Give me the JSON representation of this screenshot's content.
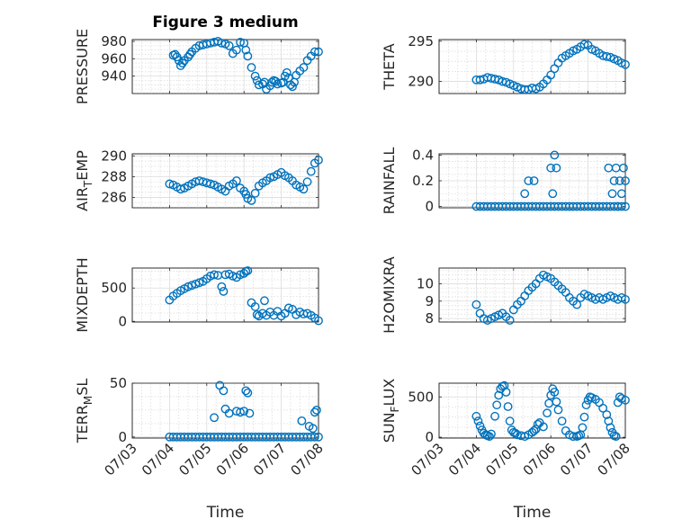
{
  "figure": {
    "title": "Figure 3 medium"
  },
  "colors": {
    "marker": "#0072bd",
    "axes": "#262626",
    "grid": "#dcdcdc"
  },
  "chart_data": [
    {
      "type": "scatter",
      "title": "Figure 3 medium",
      "ylabel": "PRESSURE",
      "xlim": [
        "07/03",
        "07/08"
      ],
      "ylim": [
        920,
        982
      ],
      "yticks": [
        940,
        960,
        980
      ],
      "xticks": [],
      "grid": true,
      "x": [
        1.1,
        1.15,
        1.2,
        1.25,
        1.3,
        1.35,
        1.4,
        1.5,
        1.55,
        1.6,
        1.7,
        1.8,
        1.9,
        2.0,
        2.1,
        2.2,
        2.3,
        2.4,
        2.5,
        2.6,
        2.7,
        2.8,
        2.9,
        3.0,
        3.05,
        3.1,
        3.2,
        3.3,
        3.35,
        3.4,
        3.5,
        3.55,
        3.6,
        3.7,
        3.75,
        3.8,
        3.85,
        3.9,
        4.0,
        4.05,
        4.1,
        4.15,
        4.2,
        4.25,
        4.3,
        4.35,
        4.4,
        4.5,
        4.6,
        4.7,
        4.8,
        4.9,
        5.0
      ],
      "y": [
        964,
        965,
        962,
        958,
        952,
        955,
        958,
        962,
        965,
        968,
        972,
        975,
        976,
        977,
        978,
        979,
        980,
        978,
        977,
        975,
        966,
        970,
        979,
        978,
        970,
        963,
        950,
        940,
        935,
        930,
        931,
        933,
        925,
        929,
        933,
        935,
        934,
        931,
        932,
        933,
        940,
        944,
        938,
        930,
        928,
        933,
        941,
        946,
        950,
        958,
        963,
        968,
        968
      ]
    },
    {
      "type": "scatter",
      "title": "",
      "ylabel": "THETA",
      "xlim": [
        "07/03",
        "07/08"
      ],
      "ylim": [
        288.5,
        295.2
      ],
      "yticks": [
        290,
        295
      ],
      "xticks": [],
      "grid": true,
      "x": [
        1.0,
        1.1,
        1.2,
        1.3,
        1.4,
        1.5,
        1.6,
        1.7,
        1.8,
        1.9,
        2.0,
        2.1,
        2.2,
        2.3,
        2.4,
        2.5,
        2.6,
        2.7,
        2.8,
        2.9,
        3.0,
        3.1,
        3.2,
        3.3,
        3.4,
        3.5,
        3.6,
        3.7,
        3.8,
        3.9,
        4.0,
        4.1,
        4.2,
        4.3,
        4.4,
        4.5,
        4.6,
        4.7,
        4.8,
        4.9,
        5.0
      ],
      "y": [
        290.2,
        290.2,
        290.3,
        290.5,
        290.4,
        290.3,
        290.2,
        290.0,
        289.9,
        289.7,
        289.5,
        289.3,
        289.1,
        289.0,
        289.0,
        289.2,
        289.1,
        289.3,
        289.7,
        290.2,
        290.8,
        291.6,
        292.3,
        292.9,
        293.2,
        293.5,
        293.8,
        294.0,
        294.3,
        294.6,
        294.5,
        294.0,
        293.8,
        293.5,
        293.2,
        293.1,
        293.0,
        292.8,
        292.6,
        292.3,
        292.1
      ]
    },
    {
      "type": "scatter",
      "title": "",
      "ylabel": "AIR_TEMP",
      "xlim": [
        "07/03",
        "07/08"
      ],
      "ylim": [
        285,
        290.2
      ],
      "yticks": [
        286,
        288,
        290
      ],
      "xticks": [],
      "grid": true,
      "x": [
        1.0,
        1.1,
        1.2,
        1.3,
        1.4,
        1.5,
        1.6,
        1.7,
        1.8,
        1.9,
        2.0,
        2.1,
        2.2,
        2.3,
        2.4,
        2.5,
        2.6,
        2.7,
        2.8,
        2.9,
        3.0,
        3.05,
        3.1,
        3.2,
        3.3,
        3.4,
        3.5,
        3.6,
        3.7,
        3.8,
        3.9,
        4.0,
        4.1,
        4.2,
        4.3,
        4.4,
        4.5,
        4.6,
        4.7,
        4.8,
        4.9,
        5.0
      ],
      "y": [
        287.3,
        287.2,
        287.0,
        286.8,
        286.9,
        287.1,
        287.3,
        287.5,
        287.6,
        287.5,
        287.4,
        287.3,
        287.2,
        287.0,
        286.8,
        286.6,
        287.1,
        287.3,
        287.6,
        286.9,
        286.6,
        286.3,
        285.9,
        285.7,
        286.4,
        287.1,
        287.4,
        287.6,
        287.9,
        288.0,
        288.2,
        288.4,
        288.1,
        287.9,
        287.6,
        287.2,
        287.0,
        286.8,
        287.5,
        288.5,
        289.3,
        289.6
      ]
    },
    {
      "type": "scatter",
      "title": "",
      "ylabel": "RAINFALL",
      "xlim": [
        "07/03",
        "07/08"
      ],
      "ylim": [
        -0.01,
        0.41
      ],
      "yticks": [
        0,
        0.2,
        0.4
      ],
      "xticks": [],
      "grid": true,
      "x": [
        1.0,
        1.1,
        1.2,
        1.3,
        1.4,
        1.5,
        1.6,
        1.7,
        1.8,
        1.9,
        2.0,
        2.1,
        2.2,
        2.3,
        2.4,
        2.5,
        2.6,
        2.7,
        2.8,
        2.9,
        3.0,
        3.1,
        3.2,
        3.3,
        3.4,
        3.5,
        3.6,
        3.7,
        3.8,
        3.9,
        4.0,
        4.1,
        4.2,
        4.3,
        4.4,
        4.5,
        4.6,
        4.7,
        4.8,
        4.9,
        5.0,
        2.3,
        2.4,
        2.55,
        3.0,
        3.05,
        3.1,
        3.15,
        4.55,
        4.65,
        4.7,
        4.75,
        4.8,
        4.85,
        4.9,
        4.95,
        5.0
      ],
      "y": [
        0,
        0,
        0,
        0,
        0,
        0,
        0,
        0,
        0,
        0,
        0,
        0,
        0,
        0,
        0,
        0,
        0,
        0,
        0,
        0,
        0,
        0,
        0,
        0,
        0,
        0,
        0,
        0,
        0,
        0,
        0,
        0,
        0,
        0,
        0,
        0,
        0,
        0,
        0,
        0,
        0,
        0.1,
        0.2,
        0.2,
        0.3,
        0.1,
        0.4,
        0.3,
        0.3,
        0.1,
        0.2,
        0.3,
        0,
        0.2,
        0.1,
        0.3,
        0.2
      ]
    },
    {
      "type": "scatter",
      "title": "",
      "ylabel": "MIXDEPTH",
      "xlim": [
        "07/03",
        "07/08"
      ],
      "ylim": [
        -10,
        800
      ],
      "yticks": [
        0,
        500
      ],
      "xticks": [],
      "grid": true,
      "x": [
        1.0,
        1.1,
        1.2,
        1.3,
        1.4,
        1.5,
        1.6,
        1.7,
        1.8,
        1.9,
        2.0,
        2.1,
        2.2,
        2.3,
        2.4,
        2.45,
        2.5,
        2.6,
        2.7,
        2.8,
        2.9,
        3.0,
        3.05,
        3.1,
        3.2,
        3.3,
        3.35,
        3.4,
        3.5,
        3.55,
        3.6,
        3.7,
        3.8,
        3.9,
        4.0,
        4.1,
        4.2,
        4.3,
        4.4,
        4.5,
        4.6,
        4.7,
        4.8,
        4.9,
        5.0
      ],
      "y": [
        320,
        380,
        420,
        460,
        490,
        520,
        540,
        560,
        580,
        600,
        640,
        680,
        700,
        690,
        520,
        450,
        700,
        710,
        680,
        660,
        700,
        720,
        750,
        760,
        280,
        220,
        100,
        80,
        120,
        310,
        90,
        140,
        90,
        150,
        80,
        120,
        200,
        180,
        100,
        140,
        110,
        120,
        90,
        50,
        10
      ]
    },
    {
      "type": "scatter",
      "title": "",
      "ylabel": "H2OMIXRA",
      "xlim": [
        "07/03",
        "07/08"
      ],
      "ylim": [
        7.8,
        10.9
      ],
      "yticks": [
        8,
        9,
        10
      ],
      "xticks": [],
      "grid": true,
      "x": [
        1.0,
        1.1,
        1.2,
        1.3,
        1.4,
        1.5,
        1.6,
        1.7,
        1.8,
        1.9,
        2.0,
        2.1,
        2.2,
        2.3,
        2.4,
        2.5,
        2.6,
        2.7,
        2.8,
        2.9,
        3.0,
        3.1,
        3.2,
        3.3,
        3.4,
        3.5,
        3.6,
        3.7,
        3.8,
        3.9,
        4.0,
        4.1,
        4.2,
        4.3,
        4.4,
        4.5,
        4.6,
        4.7,
        4.8,
        4.9,
        5.0
      ],
      "y": [
        8.8,
        8.3,
        8.0,
        7.9,
        8.0,
        8.1,
        8.2,
        8.3,
        8.1,
        7.9,
        8.5,
        8.8,
        9.0,
        9.3,
        9.6,
        9.8,
        10.0,
        10.3,
        10.5,
        10.4,
        10.3,
        10.1,
        9.9,
        9.7,
        9.5,
        9.2,
        9.0,
        8.8,
        9.2,
        9.4,
        9.3,
        9.2,
        9.1,
        9.2,
        9.1,
        9.2,
        9.3,
        9.2,
        9.1,
        9.2,
        9.1
      ]
    },
    {
      "type": "scatter",
      "title": "",
      "ylabel": "TERR_MSL",
      "xlim": [
        "07/03",
        "07/08"
      ],
      "ylim": [
        -1,
        50
      ],
      "yticks": [
        0,
        50
      ],
      "xticks": [
        "07/03",
        "07/04",
        "07/05",
        "07/06",
        "07/07",
        "07/08"
      ],
      "xlabel": "Time",
      "grid": true,
      "x": [
        1.0,
        1.1,
        1.2,
        1.3,
        1.4,
        1.5,
        1.6,
        1.7,
        1.8,
        1.9,
        2.0,
        2.1,
        2.2,
        2.3,
        2.4,
        2.5,
        2.6,
        2.7,
        2.8,
        2.9,
        3.0,
        3.1,
        3.2,
        3.3,
        3.4,
        3.5,
        3.6,
        3.7,
        3.8,
        3.9,
        4.0,
        4.1,
        4.2,
        4.3,
        4.4,
        4.5,
        4.6,
        4.7,
        4.8,
        4.9,
        5.0,
        2.2,
        2.35,
        2.45,
        2.5,
        2.6,
        2.8,
        2.9,
        3.0,
        3.05,
        3.1,
        3.15,
        4.55,
        4.75,
        4.85,
        4.9,
        4.95
      ],
      "y": [
        0,
        0,
        0,
        0,
        0,
        0,
        0,
        0,
        0,
        0,
        0,
        0,
        0,
        0,
        0,
        0,
        0,
        0,
        0,
        0,
        0,
        0,
        0,
        0,
        0,
        0,
        0,
        0,
        0,
        0,
        0,
        0,
        0,
        0,
        0,
        0,
        0,
        0,
        0,
        0,
        0,
        18,
        48,
        43,
        26,
        22,
        24,
        23,
        24,
        43,
        41,
        22,
        15,
        10,
        8,
        23,
        25
      ]
    },
    {
      "type": "scatter",
      "title": "",
      "ylabel": "SUN_FLUX",
      "xlim": [
        "07/03",
        "07/08"
      ],
      "ylim": [
        -10,
        670
      ],
      "yticks": [
        0,
        500
      ],
      "xticks": [
        "07/03",
        "07/04",
        "07/05",
        "07/06",
        "07/07",
        "07/08"
      ],
      "xlabel": "Time",
      "grid": true,
      "x": [
        1.0,
        1.05,
        1.1,
        1.15,
        1.2,
        1.25,
        1.3,
        1.35,
        1.4,
        1.5,
        1.55,
        1.6,
        1.65,
        1.7,
        1.75,
        1.8,
        1.85,
        1.9,
        1.95,
        2.0,
        2.05,
        2.1,
        2.2,
        2.3,
        2.4,
        2.5,
        2.55,
        2.6,
        2.65,
        2.7,
        2.8,
        2.9,
        2.95,
        3.0,
        3.05,
        3.1,
        3.15,
        3.2,
        3.3,
        3.4,
        3.5,
        3.6,
        3.7,
        3.75,
        3.8,
        3.85,
        3.9,
        3.95,
        4.0,
        4.05,
        4.1,
        4.2,
        4.3,
        4.4,
        4.5,
        4.55,
        4.6,
        4.65,
        4.7,
        4.75,
        4.8,
        4.85,
        4.9,
        5.0
      ],
      "y": [
        260,
        200,
        140,
        90,
        50,
        30,
        20,
        10,
        40,
        260,
        400,
        520,
        600,
        630,
        640,
        560,
        380,
        200,
        90,
        60,
        50,
        30,
        20,
        10,
        30,
        60,
        80,
        100,
        160,
        180,
        130,
        300,
        420,
        520,
        600,
        560,
        440,
        340,
        200,
        80,
        30,
        10,
        10,
        20,
        30,
        120,
        250,
        400,
        460,
        500,
        490,
        470,
        430,
        360,
        280,
        200,
        120,
        60,
        20,
        10,
        430,
        500,
        480,
        460
      ]
    }
  ]
}
